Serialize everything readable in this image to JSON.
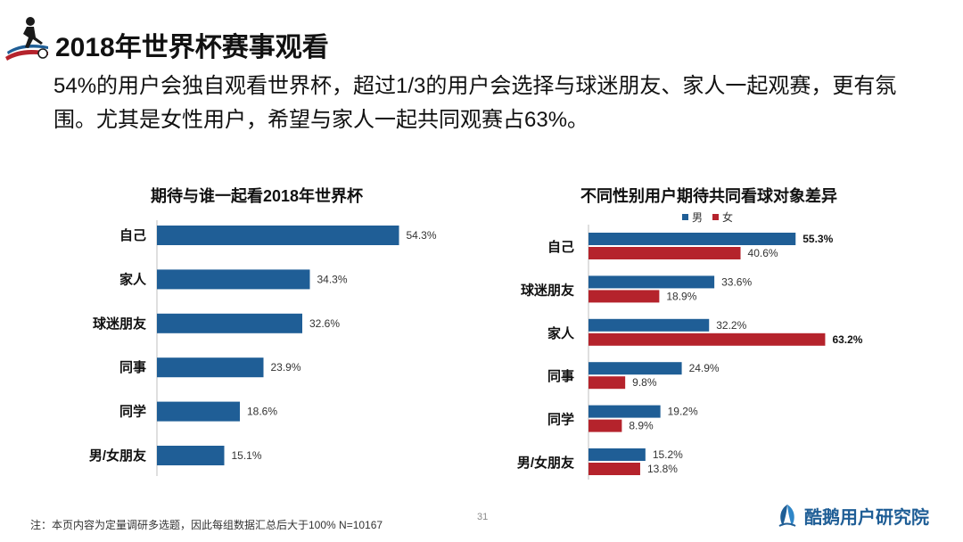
{
  "header": {
    "title": "2018年世界杯赛事观看",
    "summary": "54%的用户会独自观看世界杯，超过1/3的用户会选择与球迷朋友、家人一起观赛，更有氛围。尤其是女性用户，希望与家人一起共同观赛占63%。"
  },
  "colors": {
    "male": "#1f5e96",
    "female": "#b5232c",
    "brand": "#1f5e96"
  },
  "chart_data": [
    {
      "type": "bar",
      "orientation": "horizontal",
      "title": "期待与谁一起看2018年世界杯",
      "categories": [
        "自己",
        "家人",
        "球迷朋友",
        "同事",
        "同学",
        "男/女朋友"
      ],
      "values": [
        54.3,
        34.3,
        32.6,
        23.9,
        18.6,
        15.1
      ],
      "labels": [
        "54.3%",
        "34.3%",
        "32.6%",
        "23.9%",
        "18.6%",
        "15.1%"
      ],
      "color": "#1f5e96",
      "grid": false
    },
    {
      "type": "bar",
      "orientation": "horizontal",
      "title": "不同性别用户期待共同看球对象差异",
      "categories": [
        "自己",
        "球迷朋友",
        "家人",
        "同事",
        "同学",
        "男/女朋友"
      ],
      "legend_position": "top",
      "grid": false,
      "series": [
        {
          "name": "男",
          "color": "#1f5e96",
          "values": [
            55.3,
            33.6,
            32.2,
            24.9,
            19.2,
            15.2
          ],
          "labels": [
            "55.3%",
            "33.6%",
            "32.2%",
            "24.9%",
            "19.2%",
            "15.2%"
          ],
          "emphasis": [
            true,
            false,
            false,
            false,
            false,
            false
          ]
        },
        {
          "name": "女",
          "color": "#b5232c",
          "values": [
            40.6,
            18.9,
            63.2,
            9.8,
            8.9,
            13.8
          ],
          "labels": [
            "40.6%",
            "18.9%",
            "63.2%",
            "9.8%",
            "8.9%",
            "13.8%"
          ],
          "emphasis": [
            false,
            false,
            true,
            false,
            false,
            false
          ]
        }
      ]
    }
  ],
  "footer": {
    "note": "注：本页内容为定量调研多选题，因此每组数据汇总后大于100% N=10167",
    "page_number": "31",
    "brand": "酷鹅用户研究院"
  }
}
